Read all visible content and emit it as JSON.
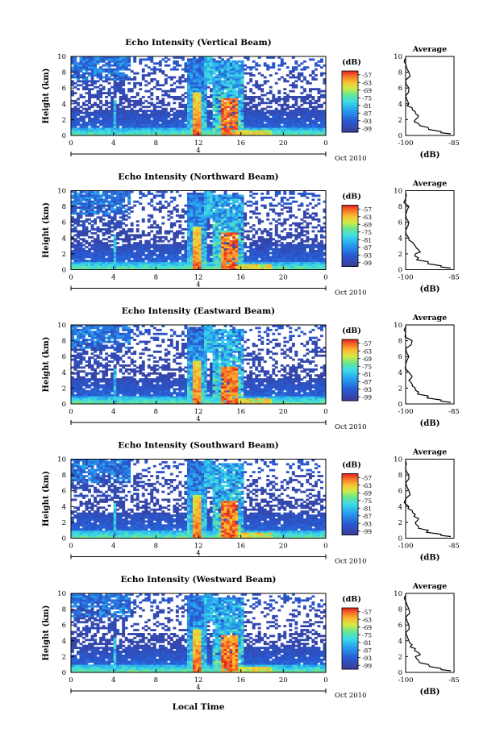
{
  "figure": {
    "xlabel": "Local Time",
    "date_label": "Oct 2010",
    "day_label": "4",
    "average_title": "Average",
    "average_xlabel": "(dB)",
    "colorbar_label": "(dB)"
  },
  "chart_data": [
    {
      "type": "heatmap",
      "title": "Echo Intensity (Vertical Beam)",
      "xlabel": "Local Time",
      "ylabel": "Height (km)",
      "xlim": [
        0,
        24
      ],
      "ylim": [
        0,
        10
      ],
      "x_ticks": [
        "0",
        "4",
        "8",
        "12",
        "16",
        "20",
        "0"
      ],
      "y_ticks": [
        "0",
        "2",
        "4",
        "6",
        "8",
        "10"
      ],
      "colorbar_ticks": [
        "-57",
        "-63",
        "-69",
        "-75",
        "-81",
        "-87",
        "-93",
        "-99"
      ],
      "average": {
        "title": "Average",
        "xlabel": "(dB)",
        "xlim": [
          -100,
          -85
        ],
        "x_ticks": [
          "-100",
          "-85"
        ],
        "height_km": [
          0.2,
          0.5,
          1.0,
          1.5,
          2.0,
          2.5,
          3.0,
          3.5,
          4.0,
          5.0,
          6.0,
          7.0,
          8.0,
          9.0,
          9.8
        ],
        "intensity_db": [
          -86,
          -89,
          -93,
          -96,
          -97,
          -96,
          -97,
          -98,
          -99,
          -100,
          -99,
          -100,
          -99,
          -100,
          -100
        ]
      }
    },
    {
      "type": "heatmap",
      "title": "Echo Intensity (Northward Beam)",
      "xlabel": "Local Time",
      "ylabel": "Height (km)",
      "xlim": [
        0,
        24
      ],
      "ylim": [
        0,
        10
      ],
      "x_ticks": [
        "0",
        "4",
        "8",
        "12",
        "16",
        "20",
        "0"
      ],
      "y_ticks": [
        "0",
        "2",
        "4",
        "6",
        "8",
        "10"
      ],
      "colorbar_ticks": [
        "-57",
        "-63",
        "-69",
        "-75",
        "-81",
        "-87",
        "-93",
        "-99"
      ],
      "average": {
        "title": "Average",
        "xlabel": "(dB)",
        "xlim": [
          -100,
          -85
        ],
        "x_ticks": [
          "-100",
          "-85"
        ],
        "height_km": [
          0.2,
          0.5,
          1.0,
          1.5,
          2.0,
          2.5,
          3.0,
          3.5,
          4.0,
          5.0,
          6.0,
          7.0,
          8.0,
          9.0,
          9.8
        ],
        "intensity_db": [
          -86,
          -89,
          -93,
          -96,
          -97,
          -96,
          -97,
          -98,
          -99,
          -100,
          -99,
          -100,
          -99,
          -100,
          -100
        ]
      }
    },
    {
      "type": "heatmap",
      "title": "Echo Intensity (Eastward Beam)",
      "xlabel": "Local Time",
      "ylabel": "Height (km)",
      "xlim": [
        0,
        24
      ],
      "ylim": [
        0,
        10
      ],
      "x_ticks": [
        "0",
        "4",
        "8",
        "12",
        "16",
        "20",
        "0"
      ],
      "y_ticks": [
        "0",
        "2",
        "4",
        "6",
        "8",
        "10"
      ],
      "colorbar_ticks": [
        "-57",
        "-63",
        "-69",
        "-75",
        "-81",
        "-87",
        "-93",
        "-99"
      ],
      "average": {
        "title": "Average",
        "xlabel": "(dB)",
        "xlim": [
          -100,
          -85
        ],
        "x_ticks": [
          "-100",
          "-85"
        ],
        "height_km": [
          0.2,
          0.5,
          1.0,
          1.5,
          2.0,
          2.5,
          3.0,
          3.5,
          4.0,
          5.0,
          6.0,
          7.0,
          8.0,
          9.0,
          9.8
        ],
        "intensity_db": [
          -86,
          -89,
          -93,
          -96,
          -97,
          -98,
          -99,
          -98,
          -99,
          -100,
          -99,
          -100,
          -98,
          -100,
          -100
        ]
      }
    },
    {
      "type": "heatmap",
      "title": "Echo Intensity (Southward Beam)",
      "xlabel": "Local Time",
      "ylabel": "Height (km)",
      "xlim": [
        0,
        24
      ],
      "ylim": [
        0,
        10
      ],
      "x_ticks": [
        "0",
        "4",
        "8",
        "12",
        "16",
        "20",
        "0"
      ],
      "y_ticks": [
        "0",
        "2",
        "4",
        "6",
        "8",
        "10"
      ],
      "colorbar_ticks": [
        "-57",
        "-63",
        "-69",
        "-75",
        "-81",
        "-87",
        "-93",
        "-99"
      ],
      "average": {
        "title": "Average",
        "xlabel": "(dB)",
        "xlim": [
          -100,
          -85
        ],
        "x_ticks": [
          "-100",
          "-85"
        ],
        "height_km": [
          0.2,
          0.5,
          1.0,
          1.5,
          2.0,
          2.5,
          3.0,
          3.5,
          4.0,
          5.0,
          6.0,
          7.0,
          8.0,
          9.0,
          9.8
        ],
        "intensity_db": [
          -86,
          -89,
          -93,
          -96,
          -97,
          -96,
          -97,
          -98,
          -99,
          -100,
          -99,
          -100,
          -99,
          -100,
          -100
        ]
      }
    },
    {
      "type": "heatmap",
      "title": "Echo Intensity (Westward Beam)",
      "xlabel": "Local Time",
      "ylabel": "Height (km)",
      "xlim": [
        0,
        24
      ],
      "ylim": [
        0,
        10
      ],
      "x_ticks": [
        "0",
        "4",
        "8",
        "12",
        "16",
        "20",
        "0"
      ],
      "y_ticks": [
        "0",
        "2",
        "4",
        "6",
        "8",
        "10"
      ],
      "colorbar_ticks": [
        "-57",
        "-63",
        "-69",
        "-75",
        "-81",
        "-87",
        "-93",
        "-99"
      ],
      "average": {
        "title": "Average",
        "xlabel": "(dB)",
        "xlim": [
          -100,
          -85
        ],
        "x_ticks": [
          "-100",
          "-85"
        ],
        "height_km": [
          0.2,
          0.5,
          1.0,
          1.5,
          2.0,
          2.5,
          3.0,
          3.5,
          4.0,
          5.0,
          6.0,
          7.0,
          8.0,
          9.0,
          9.8
        ],
        "intensity_db": [
          -86,
          -89,
          -93,
          -96,
          -97,
          -96,
          -97,
          -98,
          -99,
          -100,
          -99,
          -100,
          -99,
          -100,
          -100
        ]
      }
    }
  ]
}
